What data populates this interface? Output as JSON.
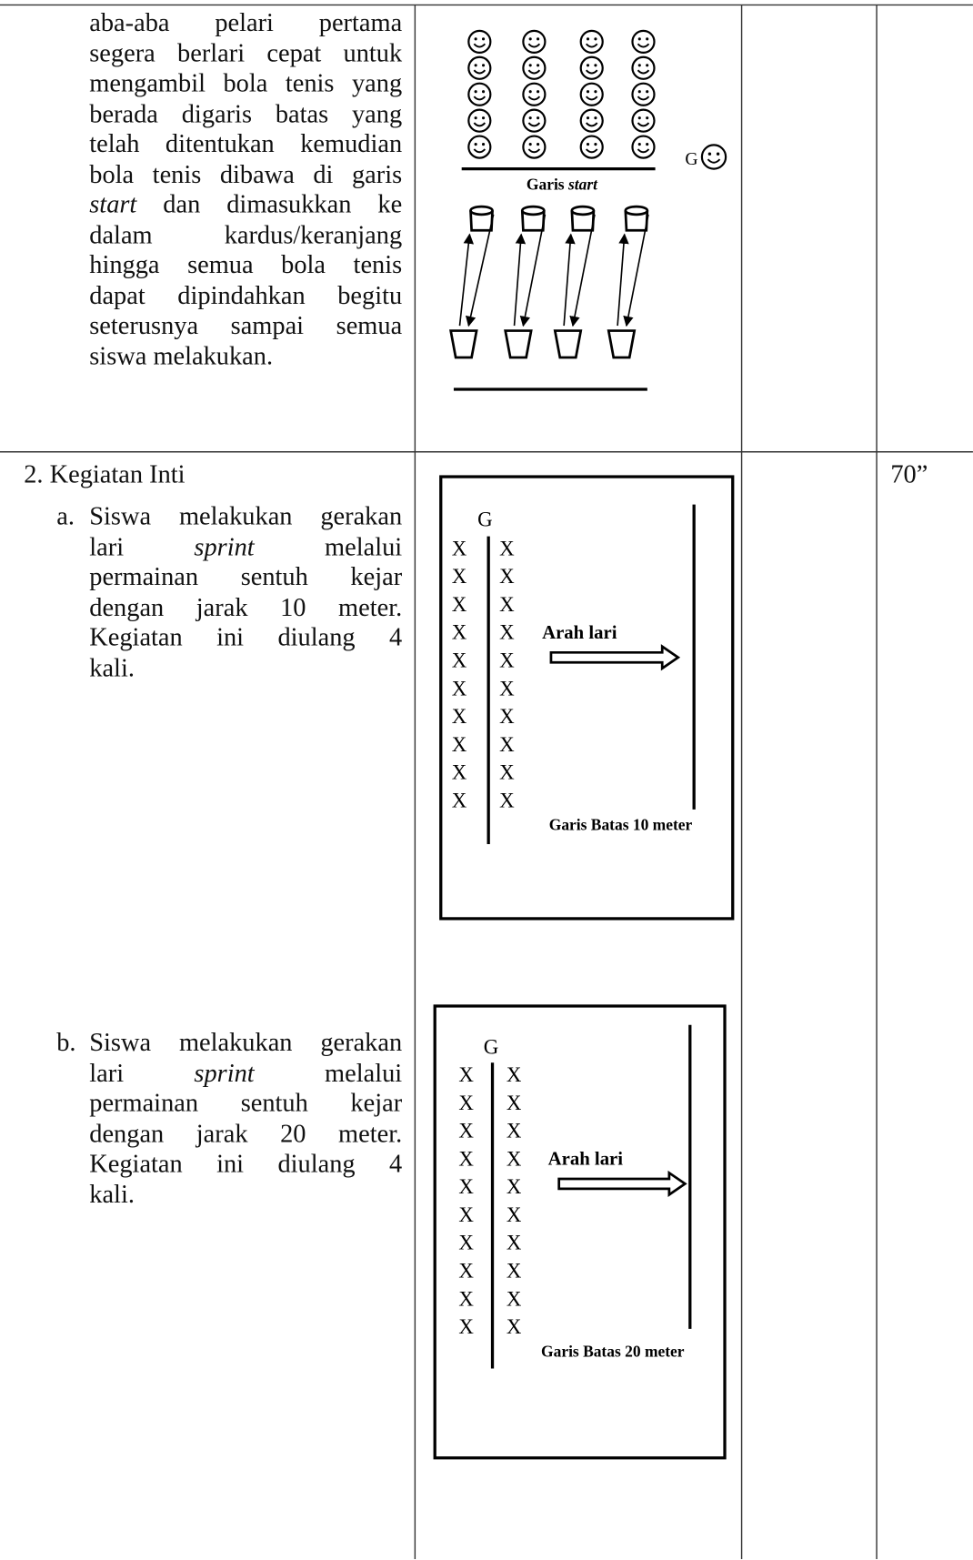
{
  "table": {
    "rows": [
      {
        "lines": [
          [
            "aba-aba pelari pertama"
          ],
          [
            "segera berlari cepat untuk"
          ],
          [
            "mengambil bola tenis yang"
          ],
          [
            "berada digaris batas yang"
          ],
          [
            "telah ditentukan kemudian"
          ],
          [
            "bola tenis dibawa di garis"
          ],
          [
            {
              "text": "start",
              "italic": true
            },
            " dan dimasukkan ke"
          ],
          [
            "dalam kardus/keranjang"
          ],
          [
            "hingga semua bola tenis"
          ],
          [
            "dapat dipindahkan begitu"
          ],
          [
            "seterusnya sampai semua"
          ],
          [
            "siswa melakukan."
          ]
        ],
        "diagram": {
          "g": "G",
          "caption": [
            "Garis ",
            {
              "text": "start",
              "italic": true
            }
          ]
        }
      },
      {
        "heading": "2. Kegiatan Inti",
        "time": "70”",
        "items": [
          {
            "marker": "a.",
            "lines": [
              [
                "Siswa melakukan gerakan"
              ],
              [
                "lari ",
                {
                  "text": "sprint",
                  "italic": true
                },
                " melalui"
              ],
              [
                "permainan sentuh kejar"
              ],
              [
                "dengan jarak 10 meter."
              ],
              [
                "Kegiatan ini diulang 4"
              ],
              [
                "kali."
              ]
            ],
            "diagram": {
              "g": "G",
              "x_rows": [
                [
                  "X",
                  "X"
                ],
                [
                  "X",
                  "X"
                ],
                [
                  "X",
                  "X"
                ],
                [
                  "X",
                  "X"
                ],
                [
                  "X",
                  "X"
                ],
                [
                  "X",
                  "X"
                ],
                [
                  "X",
                  "X"
                ],
                [
                  "X",
                  "X"
                ],
                [
                  "X",
                  "X"
                ],
                [
                  "X",
                  "X"
                ]
              ],
              "arrow_label": "Arah lari",
              "line_label": "Garis Batas 10 meter"
            }
          },
          {
            "marker": "b.",
            "lines": [
              [
                "Siswa melakukan gerakan"
              ],
              [
                "lari ",
                {
                  "text": "sprint",
                  "italic": true
                },
                " melalui"
              ],
              [
                "permainan sentuh kejar"
              ],
              [
                "dengan jarak 20 meter."
              ],
              [
                "Kegiatan ini diulang 4"
              ],
              [
                "kali."
              ]
            ],
            "diagram": {
              "g": "G",
              "x_rows": [
                [
                  "X",
                  "X"
                ],
                [
                  "X",
                  "X"
                ],
                [
                  "X",
                  "X"
                ],
                [
                  "X",
                  "X"
                ],
                [
                  "X",
                  "X"
                ],
                [
                  "X",
                  "X"
                ],
                [
                  "X",
                  "X"
                ],
                [
                  "X",
                  "X"
                ],
                [
                  "X",
                  "X"
                ],
                [
                  "X",
                  "X"
                ]
              ],
              "arrow_label": "Arah lari",
              "line_label": "Garis Batas 20 meter"
            }
          }
        ]
      }
    ]
  }
}
